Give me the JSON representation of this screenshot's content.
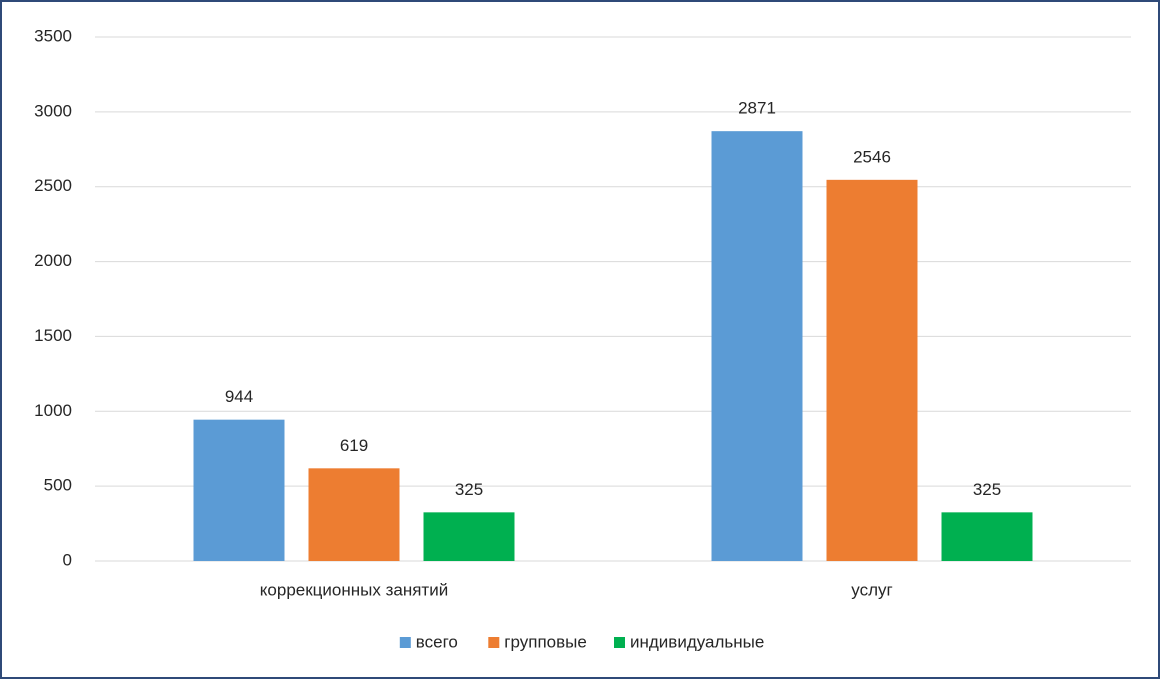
{
  "chart_data": {
    "type": "bar",
    "categories": [
      "коррекционных занятий",
      "услуг"
    ],
    "series": [
      {
        "name": "всего",
        "color": "#5b9bd5",
        "values": [
          944,
          2871
        ]
      },
      {
        "name": "групповые",
        "color": "#ed7d31",
        "values": [
          619,
          2546
        ]
      },
      {
        "name": "индивидуальные",
        "color": "#00b050",
        "values": [
          325,
          325
        ]
      }
    ],
    "ylim": [
      0,
      3500
    ],
    "yticks": [
      0,
      500,
      1000,
      1500,
      2000,
      2500,
      3000,
      3500
    ],
    "grid": true,
    "legend": "bottom"
  }
}
